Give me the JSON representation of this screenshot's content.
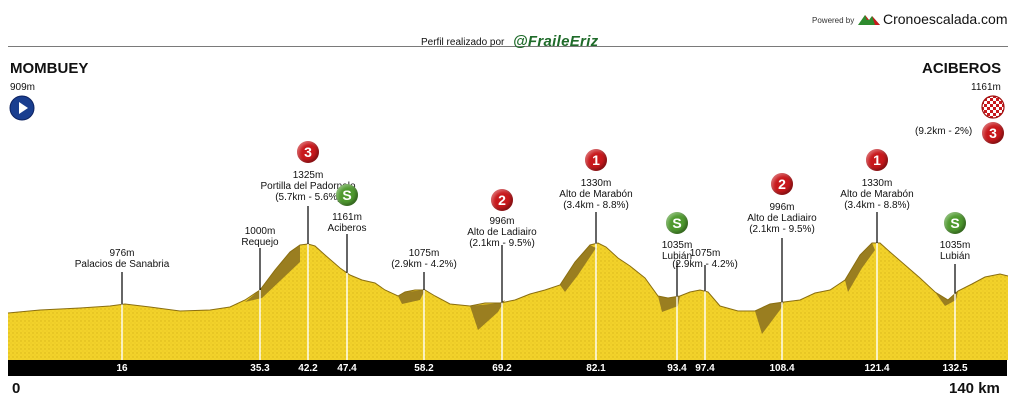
{
  "header": {
    "powered_by": "Powered by",
    "brand": "Cronoescalada.com",
    "author_label": "Perfil realizado por",
    "author_handle": "@FraileEriz"
  },
  "start": {
    "name": "MOMBUEY",
    "altitude": "909m",
    "icon": "play-icon"
  },
  "finish": {
    "name": "ACIBEROS",
    "altitude": "1161m",
    "icon": "checkered-flag-icon",
    "category": "3",
    "climb_info": "(9.2km - 2%)"
  },
  "scale": {
    "start_km": "0",
    "end_km": "140 km"
  },
  "points": [
    {
      "lines": [
        "976m",
        "Palacios de Sanabria"
      ]
    },
    {
      "lines": [
        "1000m",
        "Requejo"
      ]
    },
    {
      "lines": [
        "1325m",
        "Portilla del Padornelo",
        "(5.7km - 5.6%)"
      ],
      "badge": "3"
    },
    {
      "lines": [
        "1161m",
        "Aciberos"
      ],
      "badge": "S"
    },
    {
      "lines": [
        "1075m",
        "(2.9km - 4.2%)"
      ]
    },
    {
      "lines": [
        "996m",
        "Alto de Ladiairo",
        "(2.1km - 9.5%)"
      ],
      "badge": "2"
    },
    {
      "lines": [
        "1330m",
        "Alto de Marabón",
        "(3.4km - 8.8%)"
      ],
      "badge": "1"
    },
    {
      "lines": [
        "1035m",
        "Lubián"
      ],
      "badge": "S"
    },
    {
      "lines": [
        "1075m",
        "(2.9km - 4.2%)"
      ]
    },
    {
      "lines": [
        "996m",
        "Alto de Ladiairo",
        "(2.1km - 9.5%)"
      ],
      "badge": "2"
    },
    {
      "lines": [
        "1330m",
        "Alto de Marabón",
        "(3.4km - 8.8%)"
      ],
      "badge": "1"
    },
    {
      "lines": [
        "1035m",
        "Lubián"
      ],
      "badge": "S"
    }
  ],
  "km_marks": [
    "16",
    "35.3",
    "42.2",
    "47.4",
    "58.2",
    "69.2",
    "82.1",
    "93.4",
    "97.4",
    "108.4",
    "121.4",
    "132.5"
  ],
  "colors": {
    "profile_fill": "#f2d22a",
    "climb_shade": "#9a7e20",
    "km_bar": "#000000",
    "category_badge": "#c8181c",
    "sprint_badge": "#4f9a2f",
    "brand_green": "#1f6b2a"
  }
}
